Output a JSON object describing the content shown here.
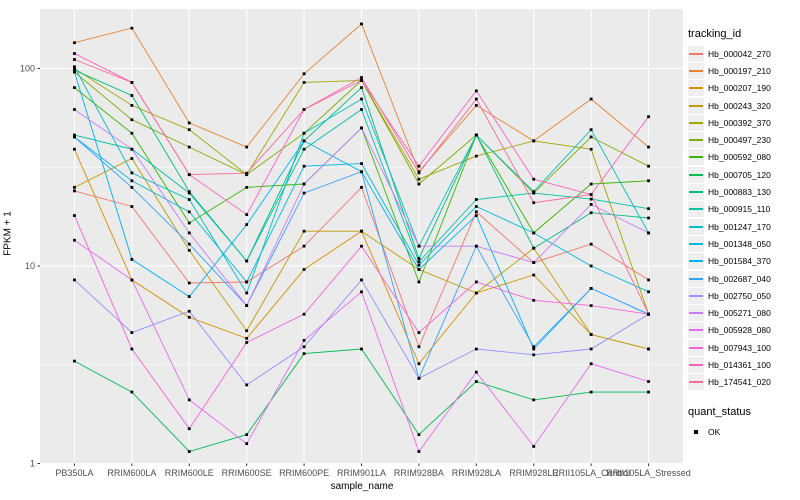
{
  "chart_data": {
    "type": "line",
    "xlabel": "sample_name",
    "ylabel": "FPKM + 1",
    "y_scale": "log10",
    "ylim": [
      1,
      200
    ],
    "yticks": [
      1,
      10,
      100
    ],
    "grid": "on",
    "panel": {
      "background": "#EBEBEB",
      "grid_color": "#FFFFFF",
      "tick_text_color": "#4D4D4D",
      "point_marker": "black-square"
    },
    "legend": {
      "position": "right",
      "color_title": "tracking_id",
      "shape_title": "quant_status",
      "shape_items": [
        {
          "label": "OK",
          "marker": "black-square"
        }
      ]
    },
    "categories": [
      "PB350LA",
      "RRIM600LA",
      "RRIM600LE",
      "RRIM600SE",
      "RRIM600PE",
      "RRIM901LA",
      "RRIM928BA",
      "RRIM928LA",
      "RRIM928LE",
      "RRII105LA_Control",
      "RRII105LA_Stressed"
    ],
    "series": [
      {
        "name": "Hb_000042_270",
        "color": "#F8766D",
        "values": [
          24,
          20,
          8.2,
          8.3,
          12.6,
          25,
          3.9,
          18.8,
          10.4,
          12.9,
          8.5
        ]
      },
      {
        "name": "Hb_000197_210",
        "color": "#EA8331",
        "values": [
          135,
          160,
          53,
          40,
          94,
          168,
          30,
          65,
          43,
          70,
          40
        ]
      },
      {
        "name": "Hb_000207_190",
        "color": "#D89000",
        "values": [
          39,
          8.5,
          5.5,
          4.3,
          9.6,
          15,
          3.2,
          7.3,
          9,
          4.5,
          3.8
        ]
      },
      {
        "name": "Hb_000243_320",
        "color": "#C09B00",
        "values": [
          25,
          35,
          12,
          4.7,
          15,
          15,
          9.6,
          7.3,
          12.3,
          4.5,
          3.8
        ]
      },
      {
        "name": "Hb_000392_370",
        "color": "#A3A500",
        "values": [
          100,
          65,
          49,
          29,
          85,
          87,
          27.5,
          36,
          43,
          39,
          5.7
        ]
      },
      {
        "name": "Hb_000497_230",
        "color": "#7CAE00",
        "values": [
          96,
          55,
          40,
          29,
          47,
          87,
          26,
          46,
          23.4,
          45,
          32
        ]
      },
      {
        "name": "Hb_000592_080",
        "color": "#39B600",
        "values": [
          80,
          47,
          16.5,
          25,
          26,
          50,
          8.3,
          46,
          14.7,
          26,
          27
        ]
      },
      {
        "name": "Hb_000705_120",
        "color": "#00BB4E",
        "values": [
          3.3,
          2.3,
          1.15,
          1.4,
          3.6,
          3.8,
          1.4,
          2.6,
          2.1,
          2.3,
          2.3
        ]
      },
      {
        "name": "Hb_000883_130",
        "color": "#00BF7D",
        "values": [
          98,
          73,
          23.8,
          10.6,
          43,
          80,
          10.9,
          46,
          12.3,
          18.6,
          17.5
        ]
      },
      {
        "name": "Hb_000915_110",
        "color": "#00C1A3",
        "values": [
          46,
          39,
          23.4,
          10.6,
          39,
          62,
          10.5,
          21.7,
          23.4,
          21.8,
          19.5
        ]
      },
      {
        "name": "Hb_001247_170",
        "color": "#00BFC4",
        "values": [
          102,
          29.6,
          21.7,
          7.3,
          47,
          70,
          12.6,
          46,
          23.8,
          49,
          14.7
        ]
      },
      {
        "name": "Hb_001348_050",
        "color": "#00BAE0",
        "values": [
          45,
          27,
          18.8,
          8.3,
          32,
          33,
          10.1,
          20,
          14.7,
          10,
          7.4
        ]
      },
      {
        "name": "Hb_001584_370",
        "color": "#00B0F6",
        "values": [
          96,
          10.8,
          7,
          16.2,
          43,
          30,
          9.6,
          18,
          3.8,
          7.7,
          5.7
        ]
      },
      {
        "name": "Hb_002687_040",
        "color": "#35A2FF",
        "values": [
          45,
          25,
          12.9,
          6.3,
          23.4,
          30,
          2.7,
          12.6,
          3.9,
          7.7,
          5.7
        ]
      },
      {
        "name": "Hb_002750_050",
        "color": "#9590FF",
        "values": [
          8.5,
          4.6,
          5.9,
          2.5,
          3.9,
          8.5,
          2.7,
          3.8,
          3.55,
          3.8,
          5.7
        ]
      },
      {
        "name": "Hb_005271_080",
        "color": "#C77CFF",
        "values": [
          62,
          39,
          14.7,
          6.3,
          26,
          50,
          12.6,
          12.6,
          10.4,
          20.5,
          14.7
        ]
      },
      {
        "name": "Hb_005928_080",
        "color": "#E76BF3",
        "values": [
          13.5,
          8.5,
          2.1,
          1.26,
          4.2,
          7.4,
          1.15,
          2.9,
          1.22,
          3.2,
          2.6
        ]
      },
      {
        "name": "Hb_007943_100",
        "color": "#FA62DB",
        "values": [
          18,
          3.8,
          1.5,
          4.1,
          5.7,
          12.6,
          4.6,
          8.3,
          6.7,
          6.3,
          5.7
        ]
      },
      {
        "name": "Hb_014361_100",
        "color": "#FF62BC",
        "values": [
          119,
          85,
          29,
          18.2,
          62,
          87,
          32,
          77,
          27.5,
          23,
          57
        ]
      },
      {
        "name": "Hb_174541_020",
        "color": "#FF6A98",
        "values": [
          111,
          85,
          29,
          29.5,
          62,
          90,
          29.6,
          70,
          20.9,
          23,
          5.7
        ]
      }
    ]
  }
}
